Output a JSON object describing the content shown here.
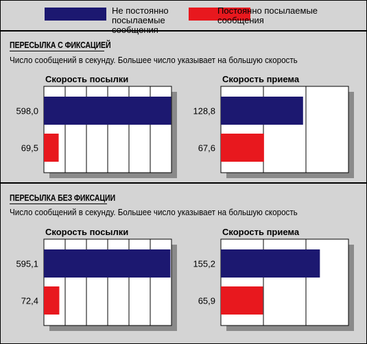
{
  "legend": [
    {
      "label": "Не постоянно посылаемые сообщения",
      "color": "#1c1870"
    },
    {
      "label": "Постоянно посылаемые сообщения",
      "color": "#e8181e"
    }
  ],
  "sections": [
    {
      "title": "ПЕРЕСЫЛКА С ФИКСАЦИЕЙ",
      "subtitle": "Число сообщений в секунду. Большее число указывает на большую скорость"
    },
    {
      "title": "ПЕРЕСЫЛКА БЕЗ ФИКСАЦИИ",
      "subtitle": "Число сообщений в секунду. Большее число указывает на большую скорость"
    }
  ],
  "chart_data": [
    {
      "type": "bar",
      "title": "Скорость посылки",
      "section": "ПЕРЕСЫЛКА С ФИКСАЦИЕЙ",
      "orientation": "horizontal",
      "series": [
        {
          "name": "Не постоянно посылаемые сообщения",
          "values": [
            598.0
          ],
          "labels": [
            "598,0"
          ]
        },
        {
          "name": "Постоянно посылаемые сообщения",
          "values": [
            69.5
          ],
          "labels": [
            "69,5"
          ]
        }
      ],
      "xlim": [
        0,
        600
      ],
      "grid": true
    },
    {
      "type": "bar",
      "title": "Скорость приема",
      "section": "ПЕРЕСЫЛКА С ФИКСАЦИЕЙ",
      "orientation": "horizontal",
      "series": [
        {
          "name": "Не постоянно посылаемые сообщения",
          "values": [
            128.8
          ],
          "labels": [
            "128,8"
          ]
        },
        {
          "name": "Постоянно посылаемые сообщения",
          "values": [
            67.6
          ],
          "labels": [
            "67,6"
          ]
        }
      ],
      "xlim": [
        0,
        200
      ],
      "grid": true
    },
    {
      "type": "bar",
      "title": "Скорость посылки",
      "section": "ПЕРЕСЫЛКА БЕЗ ФИКСАЦИИ",
      "orientation": "horizontal",
      "series": [
        {
          "name": "Не постоянно посылаемые сообщения",
          "values": [
            595.1
          ],
          "labels": [
            "595,1"
          ]
        },
        {
          "name": "Постоянно посылаемые сообщения",
          "values": [
            72.4
          ],
          "labels": [
            "72,4"
          ]
        }
      ],
      "xlim": [
        0,
        600
      ],
      "grid": true
    },
    {
      "type": "bar",
      "title": "Скорость приема",
      "section": "ПЕРЕСЫЛКА БЕЗ ФИКСАЦИИ",
      "orientation": "horizontal",
      "series": [
        {
          "name": "Не постоянно посылаемые сообщения",
          "values": [
            155.2
          ],
          "labels": [
            "155,2"
          ]
        },
        {
          "name": "Постоянно посылаемые сообщения",
          "values": [
            65.9
          ],
          "labels": [
            "65,9"
          ]
        }
      ],
      "xlim": [
        0,
        200
      ],
      "grid": true
    }
  ]
}
